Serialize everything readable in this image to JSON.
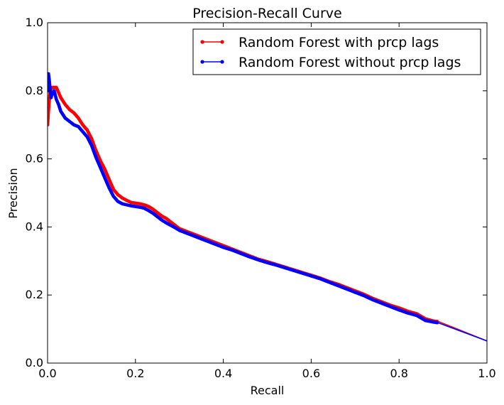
{
  "chart_data": {
    "type": "line",
    "title": "Precision-Recall Curve",
    "xlabel": "Recall",
    "ylabel": "Precision",
    "xlim": [
      0.0,
      1.0
    ],
    "ylim": [
      0.0,
      1.0
    ],
    "x_ticks": [
      "0.0",
      "0.2",
      "0.4",
      "0.6",
      "0.8",
      "1.0"
    ],
    "y_ticks": [
      "0.0",
      "0.2",
      "0.4",
      "0.6",
      "0.8",
      "1.0"
    ],
    "grid": false,
    "legend_position": "top-right",
    "series": [
      {
        "name": "Random Forest with prcp lags",
        "color": "#ff0000",
        "marker": "dot",
        "marker_until_recall": 0.89,
        "points": [
          [
            0.0,
            0.7
          ],
          [
            0.003,
            0.76
          ],
          [
            0.006,
            0.8
          ],
          [
            0.01,
            0.81
          ],
          [
            0.015,
            0.81
          ],
          [
            0.02,
            0.81
          ],
          [
            0.03,
            0.78
          ],
          [
            0.04,
            0.76
          ],
          [
            0.05,
            0.745
          ],
          [
            0.06,
            0.735
          ],
          [
            0.07,
            0.72
          ],
          [
            0.08,
            0.7
          ],
          [
            0.09,
            0.685
          ],
          [
            0.1,
            0.66
          ],
          [
            0.11,
            0.625
          ],
          [
            0.12,
            0.595
          ],
          [
            0.13,
            0.57
          ],
          [
            0.14,
            0.54
          ],
          [
            0.15,
            0.51
          ],
          [
            0.16,
            0.495
          ],
          [
            0.17,
            0.485
          ],
          [
            0.18,
            0.478
          ],
          [
            0.19,
            0.472
          ],
          [
            0.2,
            0.47
          ],
          [
            0.21,
            0.468
          ],
          [
            0.22,
            0.465
          ],
          [
            0.23,
            0.46
          ],
          [
            0.24,
            0.452
          ],
          [
            0.25,
            0.442
          ],
          [
            0.26,
            0.432
          ],
          [
            0.27,
            0.425
          ],
          [
            0.28,
            0.415
          ],
          [
            0.29,
            0.405
          ],
          [
            0.3,
            0.395
          ],
          [
            0.32,
            0.385
          ],
          [
            0.34,
            0.375
          ],
          [
            0.36,
            0.365
          ],
          [
            0.38,
            0.355
          ],
          [
            0.4,
            0.345
          ],
          [
            0.42,
            0.335
          ],
          [
            0.44,
            0.325
          ],
          [
            0.46,
            0.315
          ],
          [
            0.48,
            0.305
          ],
          [
            0.5,
            0.298
          ],
          [
            0.52,
            0.29
          ],
          [
            0.54,
            0.282
          ],
          [
            0.56,
            0.274
          ],
          [
            0.58,
            0.266
          ],
          [
            0.6,
            0.258
          ],
          [
            0.62,
            0.25
          ],
          [
            0.64,
            0.24
          ],
          [
            0.66,
            0.232
          ],
          [
            0.68,
            0.222
          ],
          [
            0.7,
            0.212
          ],
          [
            0.72,
            0.202
          ],
          [
            0.74,
            0.19
          ],
          [
            0.76,
            0.18
          ],
          [
            0.78,
            0.17
          ],
          [
            0.8,
            0.162
          ],
          [
            0.82,
            0.152
          ],
          [
            0.84,
            0.145
          ],
          [
            0.86,
            0.13
          ],
          [
            0.88,
            0.123
          ],
          [
            0.89,
            0.122
          ],
          [
            1.0,
            0.065
          ]
        ]
      },
      {
        "name": "Random Forest without prcp lags",
        "color": "#0000ff",
        "marker": "dot",
        "marker_until_recall": 0.89,
        "points": [
          [
            0.0,
            0.8
          ],
          [
            0.002,
            0.85
          ],
          [
            0.004,
            0.83
          ],
          [
            0.006,
            0.8
          ],
          [
            0.008,
            0.78
          ],
          [
            0.01,
            0.79
          ],
          [
            0.015,
            0.8
          ],
          [
            0.02,
            0.775
          ],
          [
            0.025,
            0.76
          ],
          [
            0.03,
            0.74
          ],
          [
            0.04,
            0.72
          ],
          [
            0.05,
            0.71
          ],
          [
            0.06,
            0.7
          ],
          [
            0.07,
            0.695
          ],
          [
            0.08,
            0.68
          ],
          [
            0.09,
            0.665
          ],
          [
            0.1,
            0.64
          ],
          [
            0.11,
            0.605
          ],
          [
            0.12,
            0.575
          ],
          [
            0.13,
            0.545
          ],
          [
            0.14,
            0.515
          ],
          [
            0.15,
            0.49
          ],
          [
            0.16,
            0.475
          ],
          [
            0.17,
            0.468
          ],
          [
            0.18,
            0.465
          ],
          [
            0.19,
            0.462
          ],
          [
            0.2,
            0.46
          ],
          [
            0.21,
            0.458
          ],
          [
            0.22,
            0.455
          ],
          [
            0.23,
            0.448
          ],
          [
            0.24,
            0.44
          ],
          [
            0.25,
            0.43
          ],
          [
            0.26,
            0.42
          ],
          [
            0.27,
            0.412
          ],
          [
            0.28,
            0.405
          ],
          [
            0.29,
            0.398
          ],
          [
            0.3,
            0.39
          ],
          [
            0.32,
            0.38
          ],
          [
            0.34,
            0.37
          ],
          [
            0.36,
            0.36
          ],
          [
            0.38,
            0.35
          ],
          [
            0.4,
            0.34
          ],
          [
            0.42,
            0.332
          ],
          [
            0.44,
            0.322
          ],
          [
            0.46,
            0.312
          ],
          [
            0.48,
            0.303
          ],
          [
            0.5,
            0.295
          ],
          [
            0.52,
            0.288
          ],
          [
            0.54,
            0.28
          ],
          [
            0.56,
            0.272
          ],
          [
            0.58,
            0.264
          ],
          [
            0.6,
            0.256
          ],
          [
            0.62,
            0.248
          ],
          [
            0.64,
            0.238
          ],
          [
            0.66,
            0.228
          ],
          [
            0.68,
            0.218
          ],
          [
            0.7,
            0.208
          ],
          [
            0.72,
            0.198
          ],
          [
            0.74,
            0.186
          ],
          [
            0.76,
            0.176
          ],
          [
            0.78,
            0.166
          ],
          [
            0.8,
            0.156
          ],
          [
            0.82,
            0.147
          ],
          [
            0.84,
            0.14
          ],
          [
            0.86,
            0.125
          ],
          [
            0.88,
            0.12
          ],
          [
            0.89,
            0.118
          ],
          [
            1.0,
            0.065
          ]
        ]
      }
    ]
  }
}
